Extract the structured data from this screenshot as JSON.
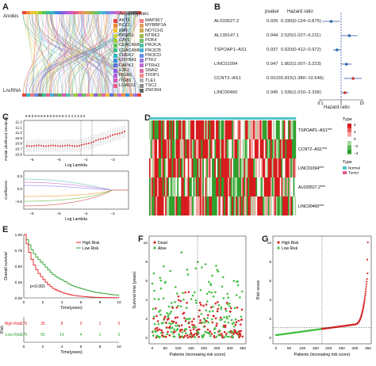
{
  "panels": {
    "a": {
      "letter": "A",
      "top_label": "Anoikis",
      "bottom_label": "LncRNA",
      "legend_title": "Anoikis genes",
      "genes_col1": [
        "AKT1",
        "BCL2",
        "BMF",
        "BRMS1",
        "CAV1",
        "CEACAM5",
        "CEACAM6",
        "CHEK2",
        "CRYBA1",
        "DAPK2",
        "E2F1",
        "ITGA5",
        "ITGB1",
        "LGALS1"
      ],
      "genes_col2": [
        "MAP3K7",
        "MYBBP1A",
        "NOTCH1",
        "NTRK2",
        "PDK4",
        "PIK3CA",
        "PIK3CB",
        "PIK3CD",
        "PTK2",
        "PTRH2",
        "SNAI2",
        "TFDP1",
        "TLE1",
        "TSC2",
        "ZNF304"
      ],
      "colors": [
        "#e8463c",
        "#f08b3a",
        "#f2c230",
        "#d6d23a",
        "#9acd32",
        "#58c25a",
        "#3bbf8f",
        "#31b6c8",
        "#3a8fd8",
        "#5a6fe0",
        "#8a5fe0",
        "#b45ad8",
        "#d857b8",
        "#e8598a",
        "#f07a7a",
        "#e89a5a",
        "#c9a94a",
        "#a0b84a",
        "#6fc06a",
        "#4ec2a8",
        "#47b0d8",
        "#6b8be8",
        "#9678e0",
        "#c16ad0",
        "#e06aa8",
        "#f08a8a",
        "#b0b0b0",
        "#888888",
        "#666666"
      ]
    },
    "b": {
      "letter": "B",
      "col_pvalue": "pvalue",
      "col_hr": "Hazard ratio",
      "rows": [
        {
          "name": "AL033527.2",
          "p": "0.026",
          "hr": "0.330(0.124−0.875)"
        },
        {
          "name": "AL139147.1",
          "p": "0.044",
          "hr": "2.520(1.027−6.211)"
        },
        {
          "name": "TSPOAP1−AS1",
          "p": "0.037",
          "hr": "0.633(0.412−0.972)"
        },
        {
          "name": "LINC01094",
          "p": "0.047",
          "hr": "1.802(1.007−3.223)"
        },
        {
          "name": "CCNT2−AS1",
          "p": "0.0103",
          "hr": "5.815(1.380−10.546)"
        },
        {
          "name": "LINC00460",
          "p": "0.045",
          "hr": "1.536(1.010−2.336)"
        }
      ],
      "axis_label": "Hazard ratio",
      "ticks": [
        "0.1",
        "1",
        "10"
      ]
    },
    "c": {
      "letter": "C",
      "top_numbers": "6 6 6 6 6 6 6 6 6 6 5 5 5 4 4 4 4 3 3 2",
      "ylabel_top": "Partial Likelihood Deviance",
      "xlabel_top": "Log Lambda",
      "yticks_top": [
        "11.2",
        "11.1",
        "11.0",
        "10.9",
        "10.8",
        "10.7",
        "10.6"
      ],
      "xticks": [
        "−6",
        "−5",
        "−4",
        "−3"
      ],
      "top_numbers_b": "6 6 6 6 6 5 4 4 3",
      "ylabel_bottom": "Coefficients",
      "xlabel_bottom": "Log Lambda",
      "yticks_bottom": [
        "0.5",
        "0.0",
        "−0.5"
      ]
    },
    "d": {
      "letter": "D",
      "rows": [
        "TSPOAP1−AS1***",
        "CCNT2−AS1***",
        "LINC01094***",
        "AL033527.2***",
        "LINC00460***"
      ],
      "legend_values": [
        "4",
        "2",
        "0",
        "−2",
        "−4"
      ],
      "type_title": "Type",
      "type_title2": "Type",
      "type_items": [
        "Normal",
        "Tumor"
      ],
      "colors": {
        "high": "#d7191c",
        "mid": "#ffffff",
        "low": "#2ca02c",
        "normal": "#4fc3c7",
        "tumor": "#e05a8a"
      }
    },
    "e": {
      "letter": "E",
      "ylabel": "Overall survival",
      "xlabel": "Time(years)",
      "legend": [
        "High Risk",
        "Low Risk"
      ],
      "pvalue": "p<0.001",
      "yticks": [
        "1.00",
        "0.75",
        "0.50",
        "0.25",
        "0.00"
      ],
      "xticks": [
        "0",
        "2",
        "4",
        "6",
        "8",
        "10"
      ],
      "risk_label": "Risk",
      "risk_rows": [
        {
          "name": "High Risk",
          "values": [
            "175",
            "35",
            "8",
            "3",
            "1",
            "0"
          ]
        },
        {
          "name": "Low Risk",
          "values": [
            "175",
            "55",
            "14",
            "4",
            "1",
            "0"
          ]
        }
      ],
      "table_xlabel": "Time(years)",
      "colors": {
        "high": "#e31a1c",
        "low": "#2ca02c"
      }
    },
    "f": {
      "letter": "F",
      "ylabel": "Survival time (years)",
      "xlabel": "Patients (increasing risk score)",
      "legend": [
        "Dead",
        "Alive"
      ],
      "yticks": [
        "10",
        "8",
        "6",
        "4",
        "2",
        "0"
      ],
      "xticks": [
        "0",
        "50",
        "100",
        "150",
        "200",
        "250",
        "300",
        "350"
      ]
    },
    "g": {
      "letter": "G",
      "ylabel": "Risk score",
      "xlabel": "Patients (increasing risk score)",
      "legend": [
        "High Risk",
        "Low Risk"
      ],
      "yticks": [
        "10",
        "8",
        "6",
        "4",
        "2",
        "0"
      ],
      "xticks": [
        "0",
        "50",
        "100",
        "150",
        "200",
        "250",
        "300",
        "350"
      ]
    }
  }
}
